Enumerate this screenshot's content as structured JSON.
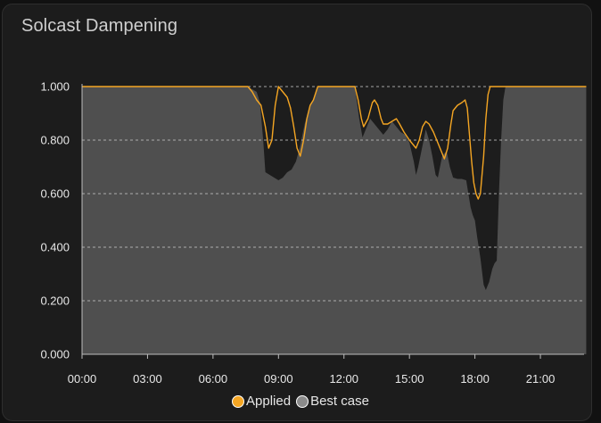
{
  "card": {
    "title": "Solcast Dampening"
  },
  "legend": {
    "applied_label": "Applied",
    "best_case_label": "Best case"
  },
  "colors": {
    "applied_line": "#f5a623",
    "best_case_fill": "#4f4f4f",
    "background": "#1c1c1c",
    "grid": "#bdbdbd"
  },
  "chart_data": {
    "type": "area",
    "title": "Solcast Dampening",
    "x_tick_labels": [
      "00:00",
      "03:00",
      "06:00",
      "09:00",
      "12:00",
      "15:00",
      "18:00",
      "21:00"
    ],
    "y_tick_labels": [
      "0.000",
      "0.200",
      "0.400",
      "0.600",
      "0.800",
      "1.000"
    ],
    "xlim_hours": [
      0,
      23
    ],
    "ylim": [
      0,
      1
    ],
    "grid": true,
    "legend_position": "bottom",
    "series": [
      {
        "name": "Best case",
        "style": "filled-area",
        "points": [
          [
            0,
            1.0
          ],
          [
            7.5,
            1.0
          ],
          [
            7.8,
            0.99
          ],
          [
            8.0,
            0.98
          ],
          [
            8.15,
            0.94
          ],
          [
            8.3,
            0.8
          ],
          [
            8.4,
            0.68
          ],
          [
            8.6,
            0.67
          ],
          [
            8.8,
            0.66
          ],
          [
            9.0,
            0.65
          ],
          [
            9.2,
            0.66
          ],
          [
            9.4,
            0.68
          ],
          [
            9.6,
            0.69
          ],
          [
            9.8,
            0.72
          ],
          [
            10.0,
            0.78
          ],
          [
            10.2,
            0.86
          ],
          [
            10.4,
            0.92
          ],
          [
            10.6,
            0.95
          ],
          [
            10.8,
            1.0
          ],
          [
            12.5,
            1.0
          ],
          [
            12.6,
            0.94
          ],
          [
            12.7,
            0.88
          ],
          [
            12.85,
            0.81
          ],
          [
            13.0,
            0.84
          ],
          [
            13.2,
            0.88
          ],
          [
            13.4,
            0.86
          ],
          [
            13.6,
            0.84
          ],
          [
            13.8,
            0.82
          ],
          [
            14.0,
            0.84
          ],
          [
            14.2,
            0.87
          ],
          [
            14.4,
            0.85
          ],
          [
            14.6,
            0.83
          ],
          [
            14.8,
            0.82
          ],
          [
            15.0,
            0.79
          ],
          [
            15.2,
            0.72
          ],
          [
            15.3,
            0.67
          ],
          [
            15.4,
            0.7
          ],
          [
            15.6,
            0.78
          ],
          [
            15.75,
            0.84
          ],
          [
            15.9,
            0.8
          ],
          [
            16.05,
            0.74
          ],
          [
            16.2,
            0.67
          ],
          [
            16.3,
            0.66
          ],
          [
            16.5,
            0.74
          ],
          [
            16.7,
            0.76
          ],
          [
            16.85,
            0.7
          ],
          [
            17.0,
            0.66
          ],
          [
            17.2,
            0.655
          ],
          [
            17.4,
            0.655
          ],
          [
            17.6,
            0.65
          ],
          [
            17.7,
            0.6
          ],
          [
            17.8,
            0.55
          ],
          [
            17.9,
            0.52
          ],
          [
            18.0,
            0.5
          ],
          [
            18.1,
            0.44
          ],
          [
            18.25,
            0.36
          ],
          [
            18.4,
            0.26
          ],
          [
            18.5,
            0.24
          ],
          [
            18.65,
            0.27
          ],
          [
            18.8,
            0.32
          ],
          [
            18.9,
            0.34
          ],
          [
            19.0,
            0.35
          ],
          [
            19.1,
            0.6
          ],
          [
            19.2,
            0.8
          ],
          [
            19.3,
            0.95
          ],
          [
            19.4,
            1.0
          ],
          [
            23.1,
            1.0
          ]
        ]
      },
      {
        "name": "Applied",
        "style": "line",
        "points": [
          [
            0,
            1.0
          ],
          [
            7.6,
            1.0
          ],
          [
            7.8,
            0.98
          ],
          [
            8.0,
            0.95
          ],
          [
            8.2,
            0.93
          ],
          [
            8.4,
            0.85
          ],
          [
            8.55,
            0.77
          ],
          [
            8.7,
            0.8
          ],
          [
            8.85,
            0.93
          ],
          [
            9.0,
            1.0
          ],
          [
            9.2,
            0.98
          ],
          [
            9.4,
            0.96
          ],
          [
            9.55,
            0.92
          ],
          [
            9.7,
            0.85
          ],
          [
            9.85,
            0.77
          ],
          [
            10.0,
            0.74
          ],
          [
            10.15,
            0.8
          ],
          [
            10.3,
            0.88
          ],
          [
            10.45,
            0.93
          ],
          [
            10.6,
            0.95
          ],
          [
            10.8,
            1.0
          ],
          [
            12.5,
            1.0
          ],
          [
            12.65,
            0.95
          ],
          [
            12.8,
            0.88
          ],
          [
            12.9,
            0.85
          ],
          [
            13.1,
            0.88
          ],
          [
            13.3,
            0.94
          ],
          [
            13.4,
            0.95
          ],
          [
            13.55,
            0.93
          ],
          [
            13.7,
            0.88
          ],
          [
            13.8,
            0.86
          ],
          [
            14.0,
            0.86
          ],
          [
            14.2,
            0.87
          ],
          [
            14.4,
            0.88
          ],
          [
            14.55,
            0.86
          ],
          [
            14.75,
            0.83
          ],
          [
            15.0,
            0.8
          ],
          [
            15.2,
            0.78
          ],
          [
            15.3,
            0.77
          ],
          [
            15.45,
            0.8
          ],
          [
            15.6,
            0.85
          ],
          [
            15.75,
            0.87
          ],
          [
            15.9,
            0.86
          ],
          [
            16.1,
            0.83
          ],
          [
            16.3,
            0.79
          ],
          [
            16.45,
            0.76
          ],
          [
            16.6,
            0.73
          ],
          [
            16.75,
            0.77
          ],
          [
            16.9,
            0.86
          ],
          [
            17.0,
            0.91
          ],
          [
            17.2,
            0.93
          ],
          [
            17.4,
            0.94
          ],
          [
            17.55,
            0.95
          ],
          [
            17.65,
            0.92
          ],
          [
            17.75,
            0.82
          ],
          [
            17.85,
            0.72
          ],
          [
            17.95,
            0.64
          ],
          [
            18.05,
            0.6
          ],
          [
            18.15,
            0.58
          ],
          [
            18.25,
            0.6
          ],
          [
            18.4,
            0.74
          ],
          [
            18.5,
            0.88
          ],
          [
            18.6,
            0.97
          ],
          [
            18.7,
            1.0
          ],
          [
            23.1,
            1.0
          ]
        ]
      }
    ]
  }
}
